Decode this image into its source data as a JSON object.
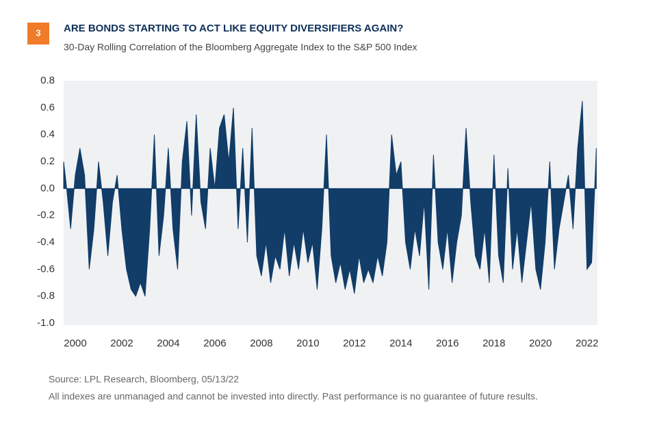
{
  "badge": "3",
  "chart_data": {
    "type": "area",
    "title": "ARE BONDS STARTING TO ACT LIKE EQUITY DIVERSIFIERS AGAIN?",
    "subtitle": "30-Day Rolling Correlation of the Bloomberg Aggregate Index to the S&P 500 Index",
    "color": "#113d68",
    "background": "#f0f1f3",
    "x": [
      1999.5,
      1999.6,
      1999.8,
      2000.0,
      2000.2,
      2000.4,
      2000.6,
      2000.8,
      2001.0,
      2001.2,
      2001.4,
      2001.6,
      2001.8,
      2002.0,
      2002.2,
      2002.4,
      2002.6,
      2002.8,
      2003.0,
      2003.2,
      2003.4,
      2003.6,
      2003.8,
      2004.0,
      2004.2,
      2004.4,
      2004.6,
      2004.8,
      2005.0,
      2005.2,
      2005.4,
      2005.6,
      2005.8,
      2006.0,
      2006.2,
      2006.4,
      2006.6,
      2006.8,
      2007.0,
      2007.2,
      2007.4,
      2007.6,
      2007.8,
      2008.0,
      2008.2,
      2008.4,
      2008.6,
      2008.8,
      2009.0,
      2009.2,
      2009.4,
      2009.6,
      2009.8,
      2010.0,
      2010.2,
      2010.4,
      2010.6,
      2010.8,
      2011.0,
      2011.2,
      2011.4,
      2011.6,
      2011.8,
      2012.0,
      2012.2,
      2012.4,
      2012.6,
      2012.8,
      2013.0,
      2013.2,
      2013.4,
      2013.6,
      2013.8,
      2014.0,
      2014.2,
      2014.4,
      2014.6,
      2014.8,
      2015.0,
      2015.2,
      2015.4,
      2015.6,
      2015.8,
      2016.0,
      2016.2,
      2016.4,
      2016.6,
      2016.8,
      2017.0,
      2017.2,
      2017.4,
      2017.6,
      2017.8,
      2018.0,
      2018.2,
      2018.4,
      2018.6,
      2018.8,
      2019.0,
      2019.2,
      2019.4,
      2019.6,
      2019.8,
      2020.0,
      2020.2,
      2020.4,
      2020.6,
      2020.8,
      2021.0,
      2021.2,
      2021.4,
      2021.6,
      2021.8,
      2022.0,
      2022.2,
      2022.4
    ],
    "values": [
      0.2,
      0.05,
      -0.3,
      0.1,
      0.3,
      0.1,
      -0.6,
      -0.3,
      0.2,
      -0.1,
      -0.5,
      -0.1,
      0.1,
      -0.3,
      -0.6,
      -0.75,
      -0.8,
      -0.7,
      -0.8,
      -0.3,
      0.4,
      -0.5,
      -0.2,
      0.3,
      -0.3,
      -0.6,
      0.2,
      0.5,
      -0.2,
      0.55,
      -0.1,
      -0.3,
      0.3,
      0.0,
      0.45,
      0.55,
      0.2,
      0.6,
      -0.3,
      0.3,
      -0.4,
      0.45,
      -0.5,
      -0.65,
      -0.4,
      -0.7,
      -0.5,
      -0.6,
      -0.3,
      -0.65,
      -0.4,
      -0.6,
      -0.3,
      -0.55,
      -0.4,
      -0.75,
      -0.3,
      0.4,
      -0.5,
      -0.7,
      -0.55,
      -0.75,
      -0.6,
      -0.78,
      -0.5,
      -0.7,
      -0.6,
      -0.7,
      -0.5,
      -0.65,
      -0.4,
      0.4,
      0.1,
      0.2,
      -0.4,
      -0.6,
      -0.3,
      -0.5,
      -0.1,
      -0.75,
      0.25,
      -0.4,
      -0.6,
      -0.3,
      -0.7,
      -0.4,
      -0.2,
      0.45,
      -0.1,
      -0.5,
      -0.6,
      -0.3,
      -0.7,
      0.25,
      -0.5,
      -0.7,
      0.15,
      -0.6,
      -0.3,
      -0.7,
      -0.4,
      -0.1,
      -0.6,
      -0.75,
      -0.4,
      0.2,
      -0.6,
      -0.3,
      -0.1,
      0.1,
      -0.3,
      0.3,
      0.65,
      -0.6,
      -0.55,
      0.3
    ],
    "xlim": [
      1999.5,
      2022.45
    ],
    "xticks": [
      2000,
      2002,
      2004,
      2006,
      2008,
      2010,
      2012,
      2014,
      2016,
      2018,
      2020,
      2022
    ],
    "ylim": [
      -1.0,
      0.8
    ],
    "yticks": [
      0.8,
      0.6,
      0.4,
      0.2,
      {
        "value": 0,
        "label": "0.0"
      },
      -0.2,
      -0.4,
      -0.6,
      -0.8,
      {
        "value": -1,
        "label": "-1.0"
      }
    ],
    "grid": false
  },
  "footer": {
    "source": "Source: LPL Research, Bloomberg,  05/13/22",
    "note": "All indexes are unmanaged and cannot be invested into directly. Past performance is no guarantee of future results."
  }
}
